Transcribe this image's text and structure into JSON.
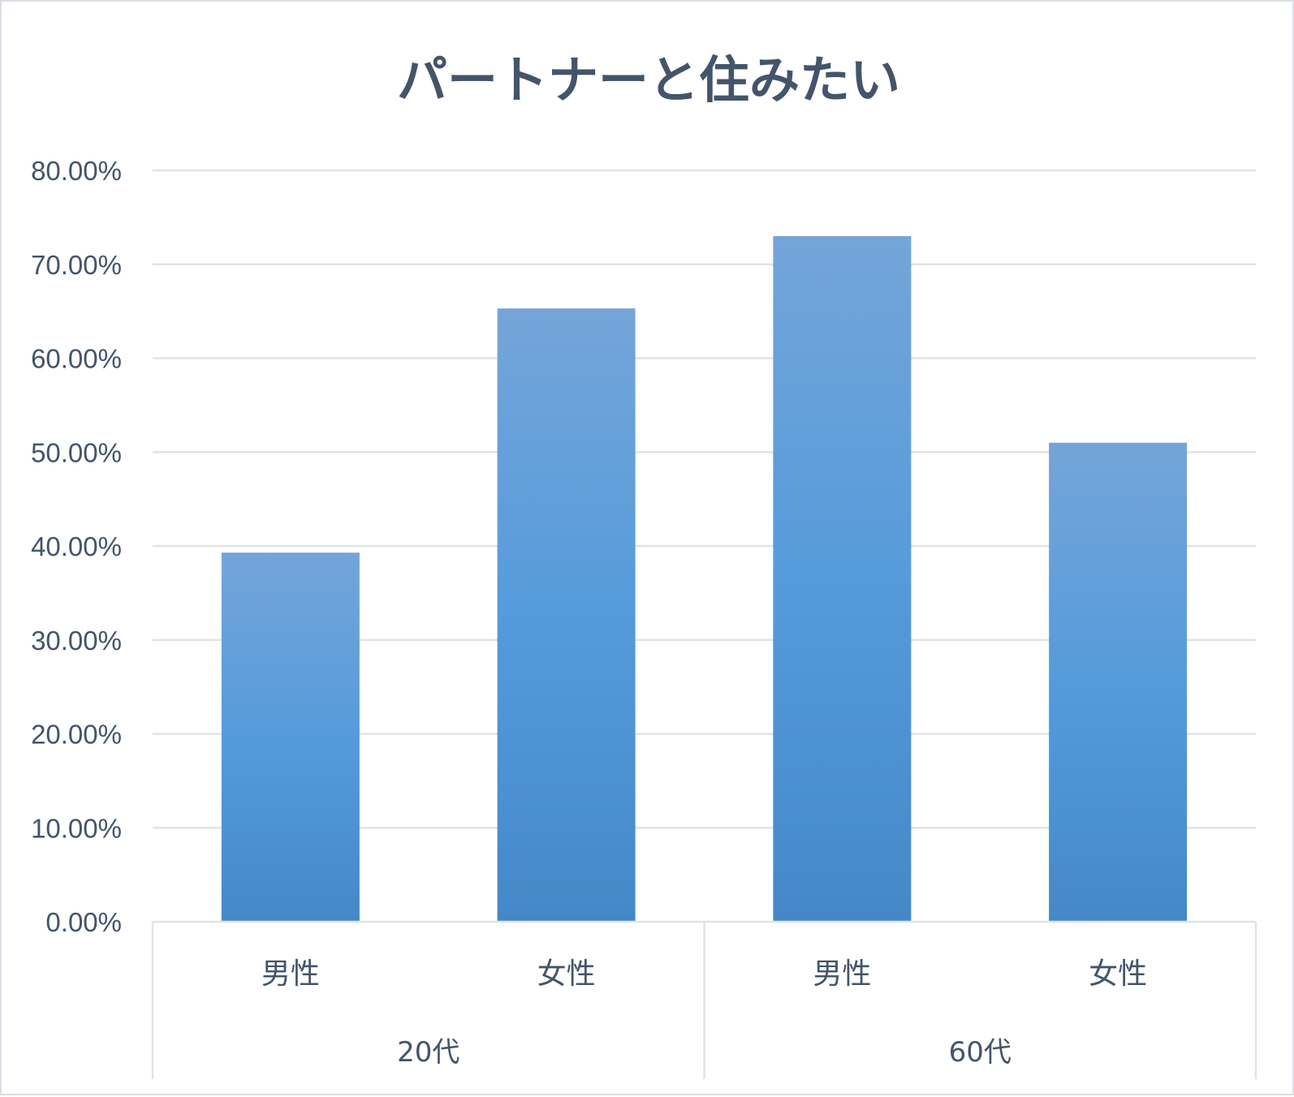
{
  "chart_data": {
    "type": "bar",
    "title": "パートナーと住みたい",
    "xlabel": "",
    "ylabel": "",
    "ylim": [
      0,
      0.8
    ],
    "y_ticks": [
      "0.00%",
      "10.00%",
      "20.00%",
      "30.00%",
      "40.00%",
      "50.00%",
      "60.00%",
      "70.00%",
      "80.00%"
    ],
    "groups": [
      {
        "label": "20代",
        "categories": [
          "男性",
          "女性"
        ]
      },
      {
        "label": "60代",
        "categories": [
          "男性",
          "女性"
        ]
      }
    ],
    "categories": [
      "20代 男性",
      "20代 女性",
      "60代 男性",
      "60代 女性"
    ],
    "values": [
      0.393,
      0.653,
      0.73,
      0.51
    ],
    "grid": true,
    "legend": "none",
    "colors": {
      "bar_top": "#74a5d9",
      "bar_mid": "#559bdb",
      "bar_bottom": "#4488c8",
      "grid": "#dfe3e8",
      "text": "#44546a"
    }
  }
}
